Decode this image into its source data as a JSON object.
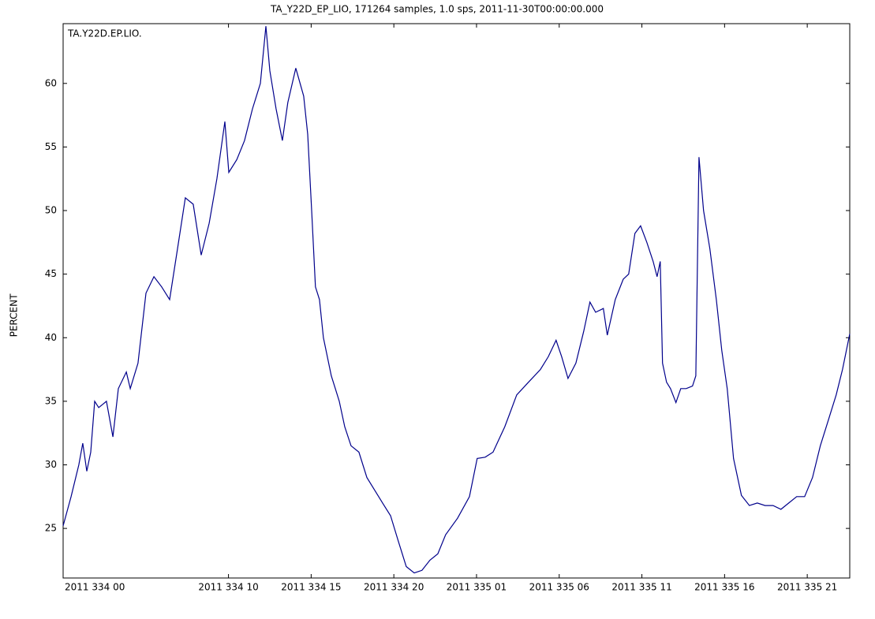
{
  "chart_data": {
    "type": "line",
    "title": "TA_Y22D_EP_LIO, 171264 samples, 1.0 sps, 2011-11-30T00:00:00.000",
    "annotation": "TA.Y22D.EP.LIO.",
    "y_label": "PERCENT",
    "xlim": [
      0,
      47.57
    ],
    "ylim": [
      21.1,
      64.7
    ],
    "xticks": [
      {
        "value": 0,
        "label": "2011 334 00"
      },
      {
        "value": 10,
        "label": "2011 334 10"
      },
      {
        "value": 15,
        "label": "2011 334 15"
      },
      {
        "value": 20,
        "label": "2011 334 20"
      },
      {
        "value": 25,
        "label": "2011 335 01"
      },
      {
        "value": 30,
        "label": "2011 335 06"
      },
      {
        "value": 35,
        "label": "2011 335 11"
      },
      {
        "value": 40,
        "label": "2011 335 16"
      },
      {
        "value": 45,
        "label": "2011 335 21"
      }
    ],
    "yticks": [
      25,
      30,
      35,
      40,
      45,
      50,
      55,
      60
    ],
    "x": [
      0,
      0.48,
      0.95,
      1.19,
      1.43,
      1.67,
      1.91,
      2.15,
      2.62,
      3.01,
      3.34,
      3.82,
      4.06,
      4.53,
      5.01,
      5.49,
      5.96,
      6.44,
      6.92,
      7.39,
      7.87,
      8.35,
      8.83,
      9.3,
      9.78,
      10.02,
      10.5,
      10.97,
      11.45,
      11.93,
      12.26,
      12.5,
      12.88,
      13.26,
      13.59,
      14.07,
      14.55,
      14.79,
      15.03,
      15.26,
      15.5,
      15.74,
      16.22,
      16.46,
      16.7,
      17.03,
      17.41,
      17.89,
      18.37,
      18.84,
      19.32,
      19.8,
      20.27,
      20.75,
      21.23,
      21.7,
      22.18,
      22.66,
      23.13,
      23.85,
      24.57,
      25.04,
      25.52,
      26.0,
      26.71,
      27.43,
      28.14,
      28.86,
      29.34,
      29.81,
      30.15,
      30.53,
      31.01,
      31.48,
      31.86,
      32.2,
      32.67,
      32.91,
      33.39,
      33.87,
      34.2,
      34.58,
      34.92,
      35.3,
      35.68,
      35.92,
      36.11,
      36.25,
      36.49,
      36.73,
      37.06,
      37.35,
      37.68,
      38.06,
      38.26,
      38.45,
      38.73,
      39.11,
      39.5,
      39.83,
      40.16,
      40.54,
      41.02,
      41.5,
      41.98,
      42.45,
      42.93,
      43.41,
      43.88,
      44.36,
      44.84,
      45.32,
      45.79,
      46.27,
      46.75,
      47.13,
      47.57
    ],
    "series": [
      {
        "name": "TA.Y22D.EP.LIO.",
        "color": "#00008b",
        "values": [
          25.2,
          27.5,
          30,
          31.7,
          29.5,
          31,
          35,
          34.5,
          35,
          32.2,
          36,
          37.3,
          36,
          38,
          43.5,
          44.8,
          44,
          43,
          47,
          51,
          50.5,
          46.5,
          49,
          52.5,
          57,
          53,
          54,
          55.5,
          58,
          60,
          64.5,
          61,
          58,
          55.5,
          58.5,
          61.2,
          59,
          56,
          50,
          44,
          43,
          40,
          37,
          36,
          35,
          33,
          31.5,
          31,
          29,
          28,
          27,
          26,
          24,
          22,
          21.5,
          21.7,
          22.5,
          23,
          24.5,
          25.8,
          27.5,
          30.5,
          30.6,
          31,
          33,
          35.5,
          36.5,
          37.5,
          38.5,
          39.8,
          38.5,
          36.8,
          38,
          40.5,
          42.8,
          42,
          42.3,
          40.2,
          43,
          44.6,
          45,
          48.2,
          48.8,
          47.5,
          46,
          44.8,
          46,
          38,
          36.5,
          36,
          34.9,
          36,
          36,
          36.2,
          37,
          54.2,
          50,
          47,
          43,
          39,
          36,
          30.5,
          27.6,
          26.8,
          27,
          26.8,
          26.8,
          26.5,
          27,
          27.5,
          27.5,
          29,
          31.5,
          33.5,
          35.5,
          37.5,
          40.3
        ]
      }
    ]
  }
}
